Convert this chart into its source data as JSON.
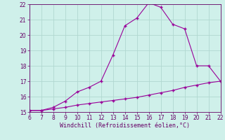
{
  "xlabel": "Windchill (Refroidissement éolien,°C)",
  "x_upper": [
    6,
    7,
    8,
    9,
    10,
    11,
    12,
    13,
    14,
    15,
    16,
    17,
    18,
    19,
    20,
    21,
    22
  ],
  "y_upper": [
    15.1,
    15.1,
    15.3,
    15.7,
    16.3,
    16.6,
    17.0,
    18.7,
    20.6,
    21.1,
    22.1,
    21.8,
    20.7,
    20.4,
    18.0,
    18.0,
    17.0
  ],
  "x_lower": [
    6,
    7,
    8,
    9,
    10,
    11,
    12,
    13,
    14,
    15,
    16,
    17,
    18,
    19,
    20,
    21,
    22
  ],
  "y_lower": [
    15.1,
    15.1,
    15.2,
    15.3,
    15.45,
    15.55,
    15.65,
    15.75,
    15.85,
    15.95,
    16.1,
    16.25,
    16.4,
    16.6,
    16.75,
    16.9,
    17.0
  ],
  "line_color": "#990099",
  "marker": "+",
  "bg_color": "#cff0ea",
  "grid_color": "#b0d8d0",
  "axis_color": "#660066",
  "tick_label_color": "#660066",
  "xlim": [
    6,
    22
  ],
  "ylim": [
    15,
    22
  ],
  "yticks": [
    15,
    16,
    17,
    18,
    19,
    20,
    21,
    22
  ],
  "xticks": [
    6,
    7,
    8,
    9,
    10,
    11,
    12,
    13,
    14,
    15,
    16,
    17,
    18,
    19,
    20,
    21,
    22
  ],
  "tick_fontsize": 5.5,
  "xlabel_fontsize": 6.0
}
